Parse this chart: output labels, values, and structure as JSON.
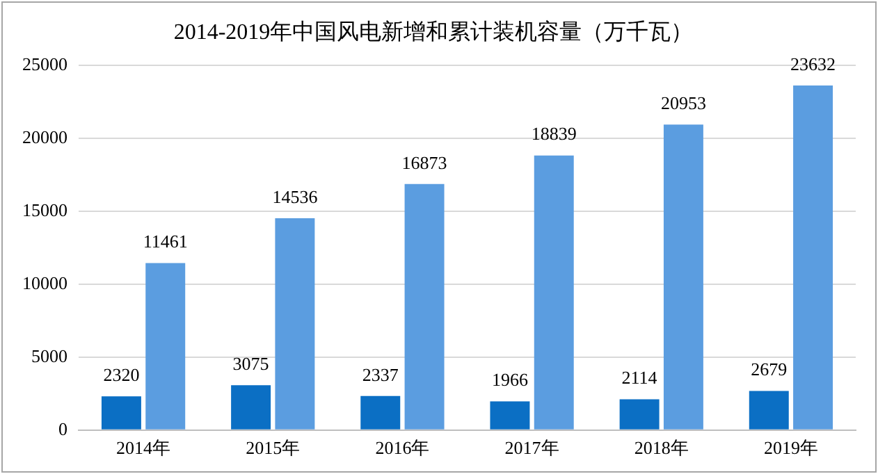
{
  "chart_data": {
    "type": "bar",
    "title": "2014-2019年中国风电新增和累计装机容量（万千瓦）",
    "categories": [
      "2014年",
      "2015年",
      "2016年",
      "2017年",
      "2018年",
      "2019年"
    ],
    "series": [
      {
        "color": "#0b6fc4",
        "values": [
          2320,
          3075,
          2337,
          1966,
          2114,
          2679
        ]
      },
      {
        "color": "#5b9de0",
        "values": [
          11461,
          14536,
          16873,
          18839,
          20953,
          23632
        ]
      }
    ],
    "ylim": [
      0,
      25000
    ],
    "yticks": [
      0,
      5000,
      10000,
      15000,
      20000,
      25000
    ],
    "grid": "y",
    "legend": false,
    "data_labels": true
  }
}
